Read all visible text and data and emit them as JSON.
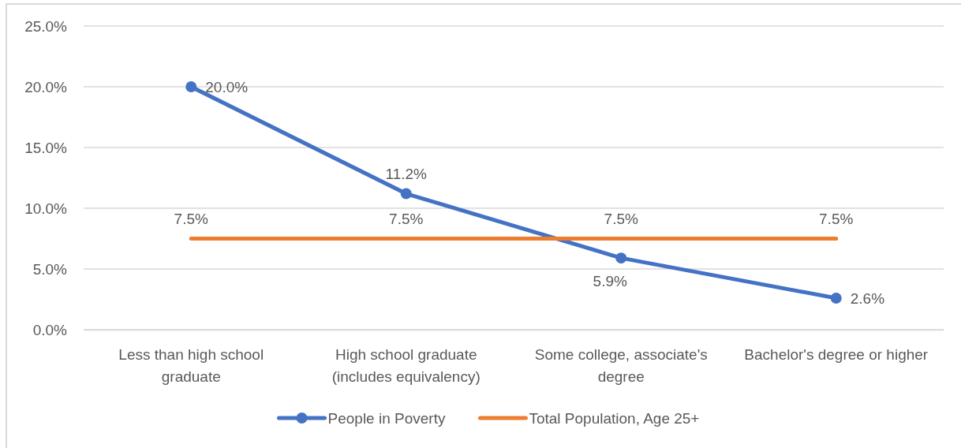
{
  "chart_data": {
    "type": "line",
    "categories": [
      "Less than high school graduate",
      "High school graduate (includes equivalency)",
      "Some college, associate's degree",
      "Bachelor's degree or higher"
    ],
    "series": [
      {
        "name": "People in Poverty",
        "color": "#4472c4",
        "values": [
          20.0,
          11.2,
          5.9,
          2.6
        ],
        "value_labels": [
          "20.0%",
          "11.2%",
          "5.9%",
          "2.6%"
        ],
        "marker": "circle"
      },
      {
        "name": "Total Population, Age 25+",
        "color": "#ed7d31",
        "values": [
          7.5,
          7.5,
          7.5,
          7.5
        ],
        "value_labels": [
          "7.5%",
          "7.5%",
          "7.5%",
          "7.5%"
        ],
        "marker": "none"
      }
    ],
    "ylim": [
      0,
      25
    ],
    "yticks": [
      {
        "value": 0,
        "label": "0.0%"
      },
      {
        "value": 5,
        "label": "5.0%"
      },
      {
        "value": 10,
        "label": "10.0%"
      },
      {
        "value": 15,
        "label": "15.0%"
      },
      {
        "value": 20,
        "label": "20.0%"
      },
      {
        "value": 25,
        "label": "25.0%"
      }
    ],
    "grid": "y",
    "legend": "bottom",
    "line_style": "solid"
  }
}
